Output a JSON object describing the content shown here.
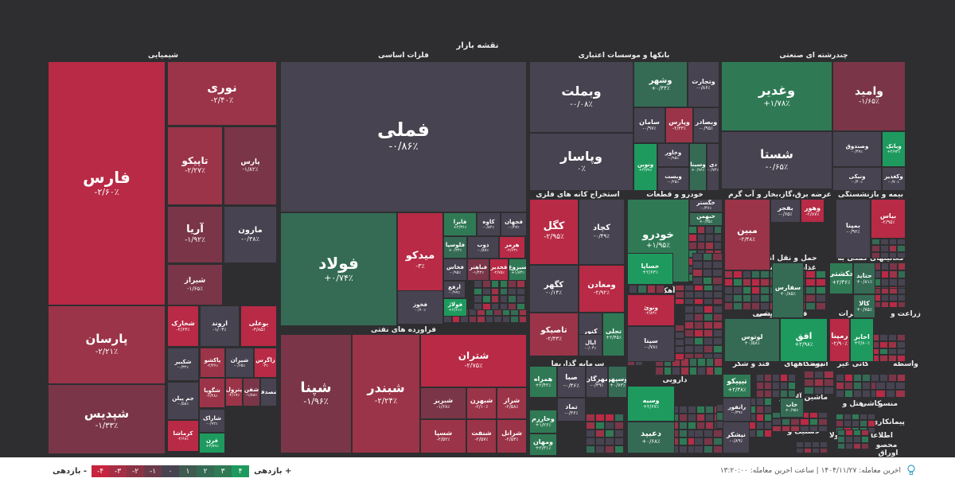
{
  "chart_data": {
    "type": "treemap",
    "title": "نقشه بازار",
    "sectors": [
      {
        "name": "شیمیایی"
      },
      {
        "name": "فلزات اساسی"
      },
      {
        "name": "بانکها و موسسات اعتباری"
      },
      {
        "name": "چندرشته ای صنعتی"
      },
      {
        "name": "استخراج کانه های فلزی"
      },
      {
        "name": "خودرو و قطعات"
      },
      {
        "name": "عرضه برق،گاز،بخار و آب گرم"
      },
      {
        "name": "بیمه و بازنشستگی"
      },
      {
        "name": "فراورده های نفتی"
      },
      {
        "name": "سیمان آهک گچ"
      },
      {
        "name": "فعالیتهای کمکی به"
      },
      {
        "name": "حمل و نقل انبارداری"
      },
      {
        "name": "غذایی بجز قند وشکر"
      },
      {
        "name": "زراعت و"
      },
      {
        "name": "مخابرات"
      },
      {
        "name": "فنی و مهندسی"
      },
      {
        "name": "خرده فروشی"
      },
      {
        "name": "سرمایه گذاریها"
      },
      {
        "name": "دارویی"
      },
      {
        "name": "واسطه"
      },
      {
        "name": "کانی غیر"
      },
      {
        "name": "انبوه"
      },
      {
        "name": "دستگاههای"
      },
      {
        "name": "قند و شکر"
      },
      {
        "name": "ماشین آلات و"
      },
      {
        "name": "کاشی"
      },
      {
        "name": "منسو"
      },
      {
        "name": "هتل و"
      },
      {
        "name": "استخرا"
      },
      {
        "name": "لاستیک و"
      },
      {
        "name": "محصولا"
      },
      {
        "name": "اطلاعا"
      },
      {
        "name": "محصو"
      },
      {
        "name": "پیمانکاری"
      },
      {
        "name": "اوراق"
      }
    ],
    "symbols": [
      {
        "name": "فارس",
        "change": "-۲/۶۰٪"
      },
      {
        "name": "نوری",
        "change": "-۲/۴۰٪"
      },
      {
        "name": "تاپیکو",
        "change": "-۲/۲۷٪"
      },
      {
        "name": "پارس",
        "change": "-۱/۸۲٪"
      },
      {
        "name": "آریا",
        "change": "-۱/۹۲٪"
      },
      {
        "name": "مارون",
        "change": "-۰/۳۸٪"
      },
      {
        "name": "شیراز",
        "change": "-۱/۶۵٪"
      },
      {
        "name": "پارسان",
        "change": "-۲/۲۱٪"
      },
      {
        "name": "شپدیس",
        "change": "-۱/۳۳٪"
      },
      {
        "name": "شخارک",
        "change": "-۲/۶۳٪"
      },
      {
        "name": "اروند",
        "change": "-۱/۰۴٪"
      },
      {
        "name": "بوعلی",
        "change": "-۳/۸۵٪"
      },
      {
        "name": "شکبیر",
        "change": "-۰/۳۲٪"
      },
      {
        "name": "پاکشو",
        "change": "-۲/۳۶٪"
      },
      {
        "name": "شیران",
        "change": "-۰/۶۵٪"
      },
      {
        "name": "زاگرس",
        "change": "-۳٪"
      },
      {
        "name": "جم پیلن",
        "change": "-۰/۵۸٪"
      },
      {
        "name": "شگویا",
        "change": "-۲/۴۸٪"
      },
      {
        "name": "شاراک",
        "change": "-۰/۹۲٪"
      },
      {
        "name": "کرماشا",
        "change": "-۲/۶۸٪"
      },
      {
        "name": "قرن",
        "change": "+۳/۸۹٪"
      },
      {
        "name": "پترول",
        "change": "-۲/۱۷٪"
      },
      {
        "name": "شفن",
        "change": "-۱/۸۸٪"
      },
      {
        "name": "شصدف",
        "change": ""
      },
      {
        "name": "فملی",
        "change": "-۰/۸۶٪"
      },
      {
        "name": "فولاد",
        "change": "+۰/۷۴٪"
      },
      {
        "name": "میدکو",
        "change": "-۳٪"
      },
      {
        "name": "فایرا",
        "change": "+۲/۳۶٪"
      },
      {
        "name": "کاوه",
        "change": "-۰/۸۲٪"
      },
      {
        "name": "فجهان",
        "change": "-۰/۴۷٪"
      },
      {
        "name": "فلوسپا",
        "change": "+۰/۲۳٪"
      },
      {
        "name": "ذوب",
        "change": "-۰/۸۷٪"
      },
      {
        "name": "هرمز",
        "change": "-۲/۶۳٪"
      },
      {
        "name": "فخاس",
        "change": "-۰/۹۵٪"
      },
      {
        "name": "فباهنر",
        "change": "-۱/۴۲٪"
      },
      {
        "name": "فخدیر",
        "change": "-۲/۷۵٪"
      },
      {
        "name": "سیزوغ",
        "change": "+۱/۸۳٪"
      },
      {
        "name": "ارفع",
        "change": "-۰/۹۹٪"
      },
      {
        "name": "فخوز",
        "change": "-۰/۶۰٪"
      },
      {
        "name": "فولاژ",
        "change": "+۲/۶۱٪"
      },
      {
        "name": "وبملت",
        "change": "-۰/۰۸٪"
      },
      {
        "name": "وپاسار",
        "change": "۰٪"
      },
      {
        "name": "وشهر",
        "change": "+۰/۴۴٪"
      },
      {
        "name": "وتجارت",
        "change": "-۰/۸۶٪"
      },
      {
        "name": "سامان",
        "change": "-۰/۹۷٪"
      },
      {
        "name": "وپارس",
        "change": "-۲/۳۳٪"
      },
      {
        "name": "وبصادر",
        "change": "-۰/۹۵٪"
      },
      {
        "name": "ونوین",
        "change": "+۳/۷۹٪"
      },
      {
        "name": "وخاور",
        "change": "-۰/۹۵٪"
      },
      {
        "name": "وسینا",
        "change": "+۰/۹۶٪"
      },
      {
        "name": "دی",
        "change": "-۰/۷۴٪"
      },
      {
        "name": "وبست",
        "change": "-۰/۲۵٪"
      },
      {
        "name": "وامید",
        "change": "-۱/۶۵٪"
      },
      {
        "name": "وغدیر",
        "change": "+۱/۷۸٪"
      },
      {
        "name": "شستا",
        "change": "-۰/۶۵٪"
      },
      {
        "name": "وصندوق",
        "change": "-۰/۴۷٪"
      },
      {
        "name": "وبانک",
        "change": "+۲/۹۳٪"
      },
      {
        "name": "ونیکی",
        "change": "-۰/۴۰٪"
      },
      {
        "name": "وکغدیر",
        "change": "-۰/۷۰٪"
      },
      {
        "name": "شپنا",
        "change": "-۱/۹۶٪"
      },
      {
        "name": "شبندر",
        "change": "-۲/۲۴٪"
      },
      {
        "name": "شتران",
        "change": "-۲/۷۵٪"
      },
      {
        "name": "شبریز",
        "change": "-۱/۶۸٪"
      },
      {
        "name": "شبهرن",
        "change": "-۲/۱۰٪"
      },
      {
        "name": "شراز",
        "change": "-۲/۵۸٪"
      },
      {
        "name": "شسپا",
        "change": "-۲/۵۲٪"
      },
      {
        "name": "شنفت",
        "change": "-۲/۵۷٪"
      },
      {
        "name": "شرانل",
        "change": "-۲/۵۳٪"
      },
      {
        "name": "شاوان",
        "change": "-۳/۳۲٪"
      },
      {
        "name": "کگل",
        "change": "-۲/۹۵٪"
      },
      {
        "name": "کچاد",
        "change": "-۰/۴۹٪"
      },
      {
        "name": "کگهر",
        "change": "-۰/۱۴٪"
      },
      {
        "name": "ومعادن",
        "change": "-۲/۹۲٪"
      },
      {
        "name": "تاصیکو",
        "change": "-۲/۳۳٪"
      },
      {
        "name": "کنور",
        "change": "-۰/۳۳٪"
      },
      {
        "name": "اپال",
        "change": "-۰/۰۴٪"
      },
      {
        "name": "تجلی",
        "change": "+۲/۴۵٪"
      },
      {
        "name": "خودرو",
        "change": "+۱/۹۵٪"
      },
      {
        "name": "خساپا",
        "change": "+۲/۶۳٪"
      },
      {
        "name": "خگستر",
        "change": "-۰/۴۶٪"
      },
      {
        "name": "خبهمن",
        "change": "+۰/۳۵٪"
      },
      {
        "name": "مبین",
        "change": "-۲/۴۸٪"
      },
      {
        "name": "بفجر",
        "change": "-۰/۶۵٪"
      },
      {
        "name": "وهور",
        "change": "-۲/۸۷٪"
      },
      {
        "name": "بمپنا",
        "change": "-۰/۹۲٪"
      },
      {
        "name": "بیاس",
        "change": "-۲/۹۵٪"
      },
      {
        "name": "ونوئ",
        "change": "-۲/۸۳٪"
      },
      {
        "name": "سیتا",
        "change": "-۰/۷۸٪"
      },
      {
        "name": "سفارس",
        "change": "+۰/۸۵٪"
      },
      {
        "name": "حکشتی",
        "change": "+۲/۳۶٪"
      },
      {
        "name": "حتاید",
        "change": "+۰/۸۱٪"
      },
      {
        "name": "کالا",
        "change": "+۰/۷۵٪"
      },
      {
        "name": "لوتوس",
        "change": "+۰/۵۸٪"
      },
      {
        "name": "افق",
        "change": "+۲/۹۸٪"
      },
      {
        "name": "رمپنا",
        "change": "-۲/۹۰٪"
      },
      {
        "name": "اخابر",
        "change": "+۲/۸۰٪"
      },
      {
        "name": "همراه",
        "change": "+۲/۴۲٪"
      },
      {
        "name": "صبا",
        "change": "-۰/۴۶٪"
      },
      {
        "name": "مهرگان",
        "change": "-۰/۳۹٪"
      },
      {
        "name": "وسپهر",
        "change": "+۰/۷۳٪"
      },
      {
        "name": "تماد",
        "change": "-۰/۳۶٪"
      },
      {
        "name": "وخارزم",
        "change": "+۱/۲۶٪"
      },
      {
        "name": "ومهان",
        "change": "+۲/۳۱٪"
      },
      {
        "name": "وسبه",
        "change": "+۲/۶۷٪"
      },
      {
        "name": "دعبید",
        "change": "+۰/۶۸٪"
      },
      {
        "name": "تیپیکو",
        "change": "+۲/۳۸٪"
      },
      {
        "name": "رانفور",
        "change": "-۰/۳۹٪"
      },
      {
        "name": "نیشکر",
        "change": "-۰/۸۹٪"
      },
      {
        "name": "سیستم",
        "change": "+۰/۹۶٪"
      },
      {
        "name": "خاب",
        "change": "+۰/۹۵٪"
      }
    ]
  },
  "footer": {
    "legend": {
      "return_pos_label": "بازدهی +",
      "return_neg_label": "بازدهی -",
      "scale": [
        "۴",
        "۳",
        "۲",
        "۱",
        "۰",
        "-۱",
        "-۲",
        "-۳",
        "-۴"
      ]
    },
    "trade_info": "اخرین معامله: ۱۴۰۴/۱۱/۲۷ | ساعت اخرین معامله: ۱۳:۲۰:۰۰"
  },
  "colors": {
    "red_strong": "#b82a45",
    "red_mid": "#9b3448",
    "red_light": "#7a3648",
    "neutral": "#474350",
    "green_light": "#356b55",
    "green_mid": "#2f7a55",
    "green_strong": "#1e9a5e"
  }
}
